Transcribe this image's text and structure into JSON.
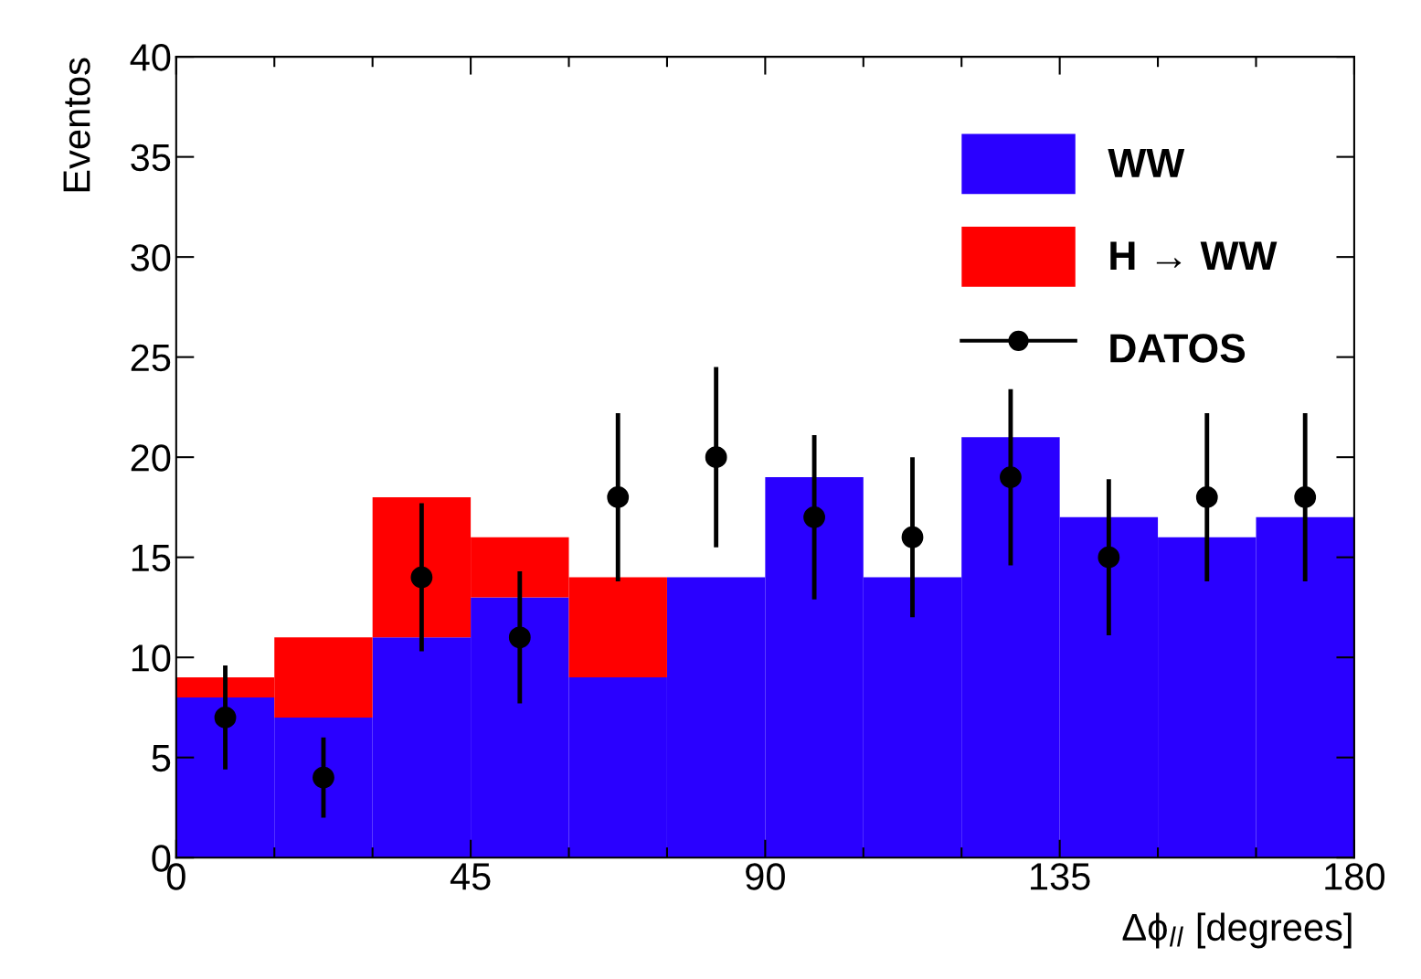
{
  "chart_data": {
    "type": "bar",
    "stacked": true,
    "x": [
      7.5,
      22.5,
      37.5,
      52.5,
      67.5,
      82.5,
      97.5,
      112.5,
      127.5,
      142.5,
      157.5,
      172.5
    ],
    "series": [
      {
        "name": "WW",
        "color": "#2a00ff",
        "values": [
          8,
          7,
          11,
          13,
          9,
          14,
          19,
          14,
          21,
          17,
          16,
          17
        ]
      },
      {
        "name": "H → WW",
        "color": "#ff0000",
        "values": [
          1,
          4,
          7,
          3,
          5,
          0,
          0,
          0,
          0,
          0,
          0,
          0
        ]
      },
      {
        "name": "DATOS",
        "type": "scatter",
        "color": "#000000",
        "marker": "circle",
        "x": [
          7.5,
          22.5,
          37.5,
          52.5,
          67.5,
          82.5,
          97.5,
          112.5,
          127.5,
          142.5,
          157.5,
          172.5
        ],
        "values": [
          7,
          4,
          14,
          11,
          18,
          20,
          17,
          16,
          19,
          15,
          18,
          18
        ],
        "errors": [
          2.6,
          2,
          3.7,
          3.3,
          4.2,
          4.5,
          4.1,
          4,
          4.4,
          3.9,
          4.2,
          4.2
        ]
      }
    ],
    "xlabel": "Δϕ$_{ll}$ [degrees]",
    "ylabel": "Eventos",
    "xlim": [
      0,
      180
    ],
    "xticks": [
      0,
      45,
      90,
      135,
      180
    ],
    "ylim": [
      0,
      40
    ],
    "yticks": [
      0,
      5,
      10,
      15,
      20,
      25,
      30,
      35,
      40
    ],
    "legend": "top right",
    "grid": false
  }
}
